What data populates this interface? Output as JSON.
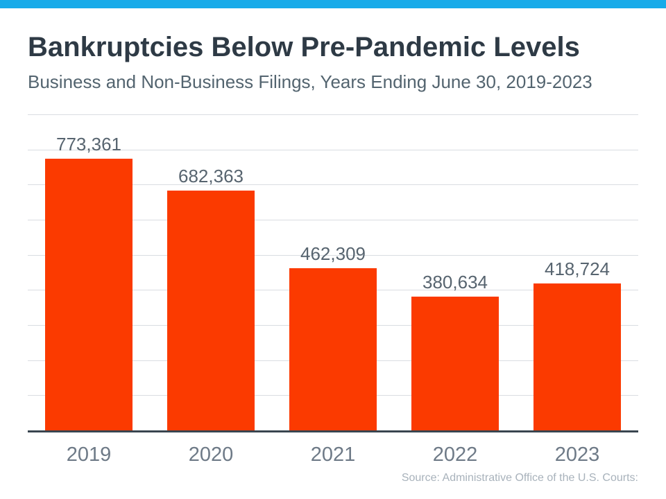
{
  "page": {
    "title": "Bankruptcies Below Pre-Pandemic Levels",
    "subtitle": "Business and Non-Business Filings, Years Ending June 30, 2019-2023",
    "source": "Source: Administrative Office of the U.S. Courts:"
  },
  "colors": {
    "banner": "#18ABE9",
    "bar": "#FB3A00",
    "title_text": "#2E3A45",
    "subtitle_text": "#53646F",
    "value_label_text": "#57646F",
    "axis_label_text": "#6E7A87",
    "axis_line": "#39454F",
    "gridline": "#D9DDE1",
    "source_text": "#A8B2BB"
  },
  "chart_data": {
    "type": "bar",
    "title": "Bankruptcies Below Pre-Pandemic Levels",
    "subtitle": "Business and Non-Business Filings, Years Ending June 30, 2019-2023",
    "categories": [
      "2019",
      "2020",
      "2021",
      "2022",
      "2023"
    ],
    "values": [
      773361,
      682363,
      462309,
      380634,
      418724
    ],
    "value_labels": [
      "773,361",
      "682,363",
      "462,309",
      "380,634",
      "418,724"
    ],
    "xlabel": "",
    "ylabel": "",
    "ylim": [
      0,
      900000
    ],
    "grid_step": 100000,
    "grid": true,
    "legend": false,
    "bar_color": "#FB3A00",
    "annotation": "Source: Administrative Office of the U.S. Courts:"
  }
}
